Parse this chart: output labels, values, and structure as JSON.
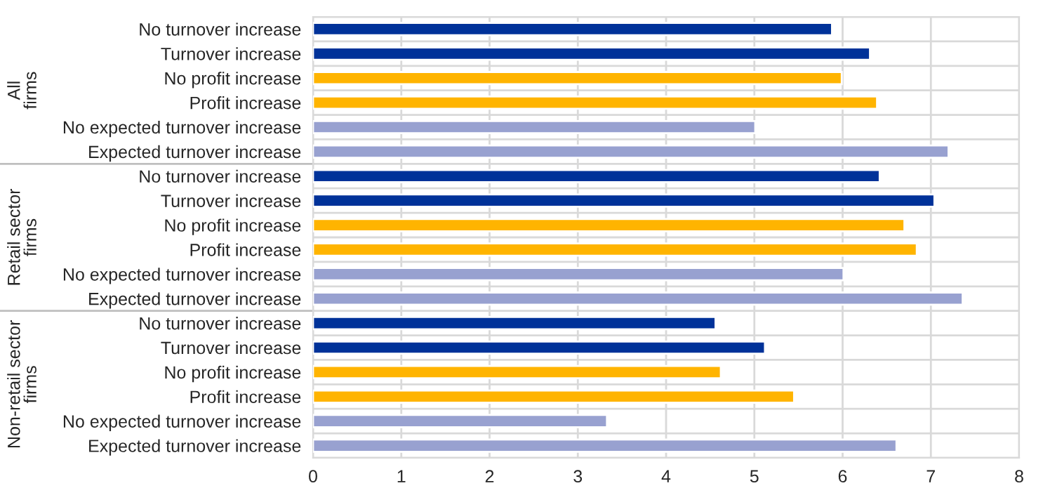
{
  "chart_data": {
    "type": "bar",
    "orientation": "horizontal",
    "categories": [
      "No turnover increase",
      "Turnover increase",
      "No profit increase",
      "Profit increase",
      "No expected turnover increase",
      "Expected turnover increase",
      "No turnover increase",
      "Turnover increase",
      "No profit increase",
      "Profit increase",
      "No expected turnover increase",
      "Expected turnover increase",
      "No turnover increase",
      "Turnover increase",
      "No profit increase",
      "Profit increase",
      "No expected turnover increase",
      "Expected turnover increase"
    ],
    "values": [
      5.88,
      6.31,
      5.99,
      6.39,
      5.01,
      7.2,
      6.42,
      7.04,
      6.7,
      6.84,
      6.01,
      7.36,
      4.56,
      5.12,
      4.62,
      5.45,
      3.33,
      6.61
    ],
    "colors": [
      "#003299",
      "#003299",
      "#ffb400",
      "#ffb400",
      "#98a1d0",
      "#98a1d0",
      "#003299",
      "#003299",
      "#ffb400",
      "#ffb400",
      "#98a1d0",
      "#98a1d0",
      "#003299",
      "#003299",
      "#ffb400",
      "#ffb400",
      "#98a1d0",
      "#98a1d0"
    ],
    "xlim": [
      0,
      8
    ],
    "xticks": [
      0,
      1,
      2,
      3,
      4,
      5,
      6,
      7,
      8
    ],
    "grid": true,
    "annotations": [
      "All\nfirms",
      "Retail sector\nfirms",
      "Non-retail sector\nfirms"
    ]
  }
}
